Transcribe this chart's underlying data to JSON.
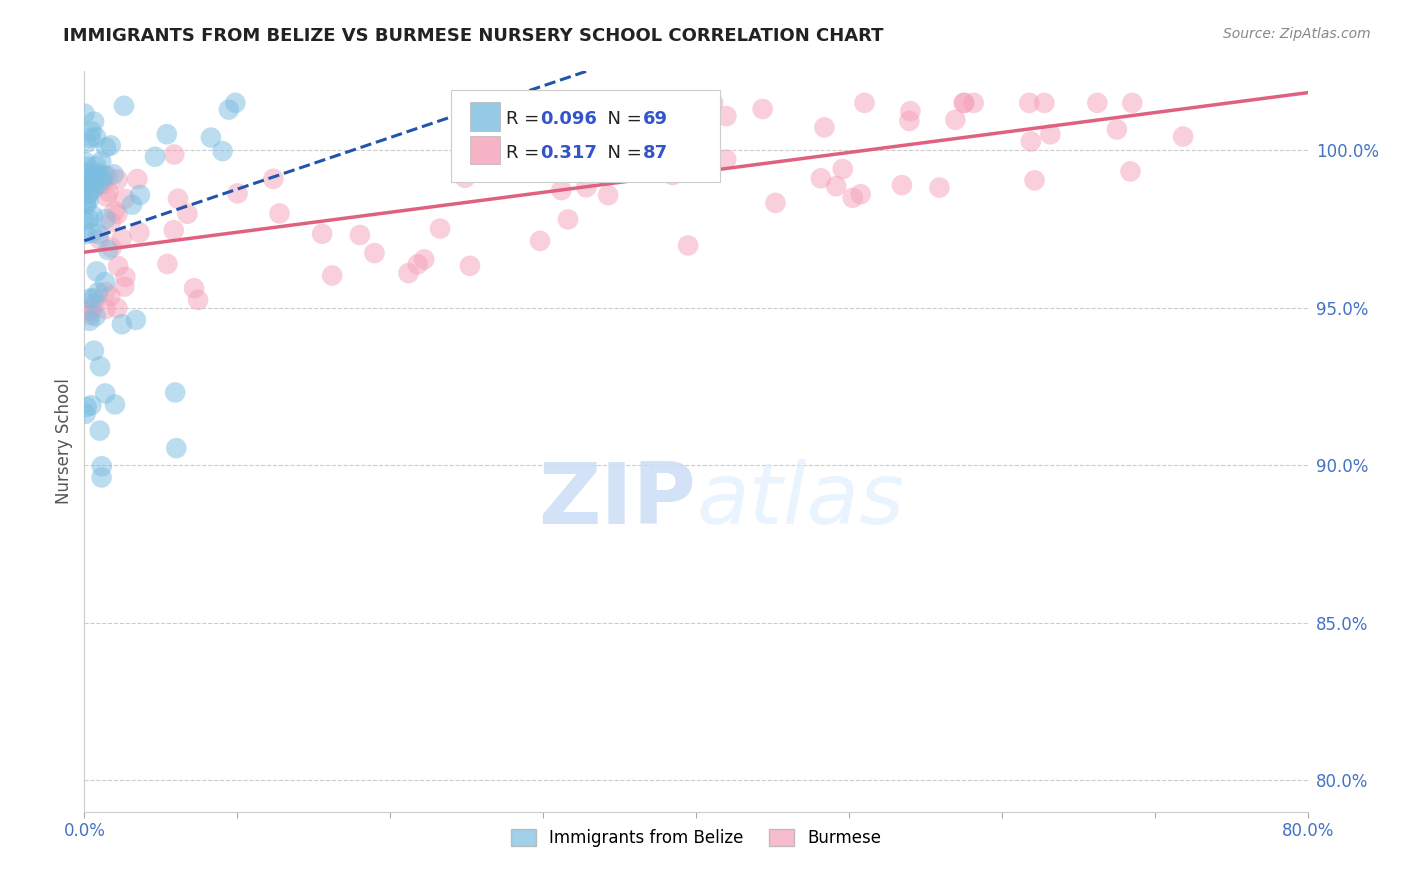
{
  "title": "IMMIGRANTS FROM BELIZE VS BURMESE NURSERY SCHOOL CORRELATION CHART",
  "source": "Source: ZipAtlas.com",
  "ylabel": "Nursery School",
  "xmin": 0.0,
  "xmax": 0.8,
  "ymin": 79.0,
  "ymax": 102.5,
  "blue_R": 0.096,
  "blue_N": 69,
  "pink_R": 0.317,
  "pink_N": 87,
  "blue_color": "#7bbde0",
  "pink_color": "#f4a0b8",
  "blue_line_color": "#2255aa",
  "pink_line_color": "#e06080",
  "legend_label_blue": "Immigrants from Belize",
  "legend_label_pink": "Burmese",
  "watermark_zip": "ZIP",
  "watermark_atlas": "atlas",
  "ytick_vals": [
    80.0,
    85.0,
    90.0,
    95.0,
    100.0
  ],
  "grid_color": "#cccccc",
  "title_color": "#222222",
  "source_color": "#888888",
  "r_value_color": "#3355cc",
  "n_value_color": "#3355cc"
}
